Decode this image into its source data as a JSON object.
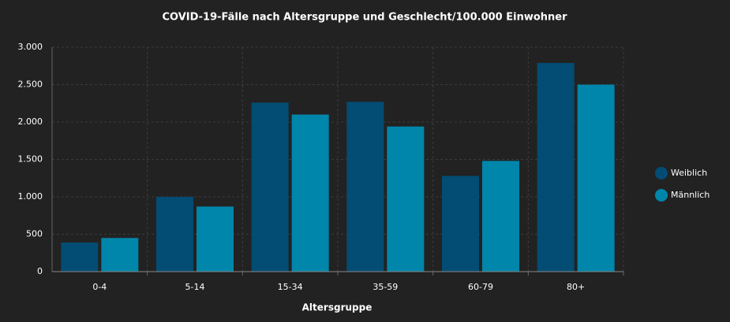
{
  "chart_data": {
    "type": "bar",
    "title": "COVID-19-Fälle nach Altersgruppe und Geschlecht/100.000 Einwohner",
    "x_label": "Altersgruppe",
    "categories": [
      "0-4",
      "5-14",
      "15-34",
      "35-59",
      "60-79",
      "80+"
    ],
    "series": [
      {
        "name": "Weiblich",
        "color": "#034c73",
        "values": [
          390,
          1000,
          2260,
          2270,
          1280,
          2790
        ]
      },
      {
        "name": "Männlich",
        "color": "#0086aa",
        "values": [
          450,
          870,
          2100,
          1940,
          1480,
          2500
        ]
      }
    ],
    "ylim": [
      0,
      3000
    ],
    "yticks": [
      0,
      500,
      {
        "value": 1000,
        "label": "1.000"
      },
      {
        "value": 1500,
        "label": "1.500"
      },
      {
        "value": 2000,
        "label": "2.000"
      },
      {
        "value": 2500,
        "label": "2.500"
      },
      {
        "value": 3000,
        "label": "3.000"
      }
    ],
    "grid": true,
    "legend": "right"
  }
}
